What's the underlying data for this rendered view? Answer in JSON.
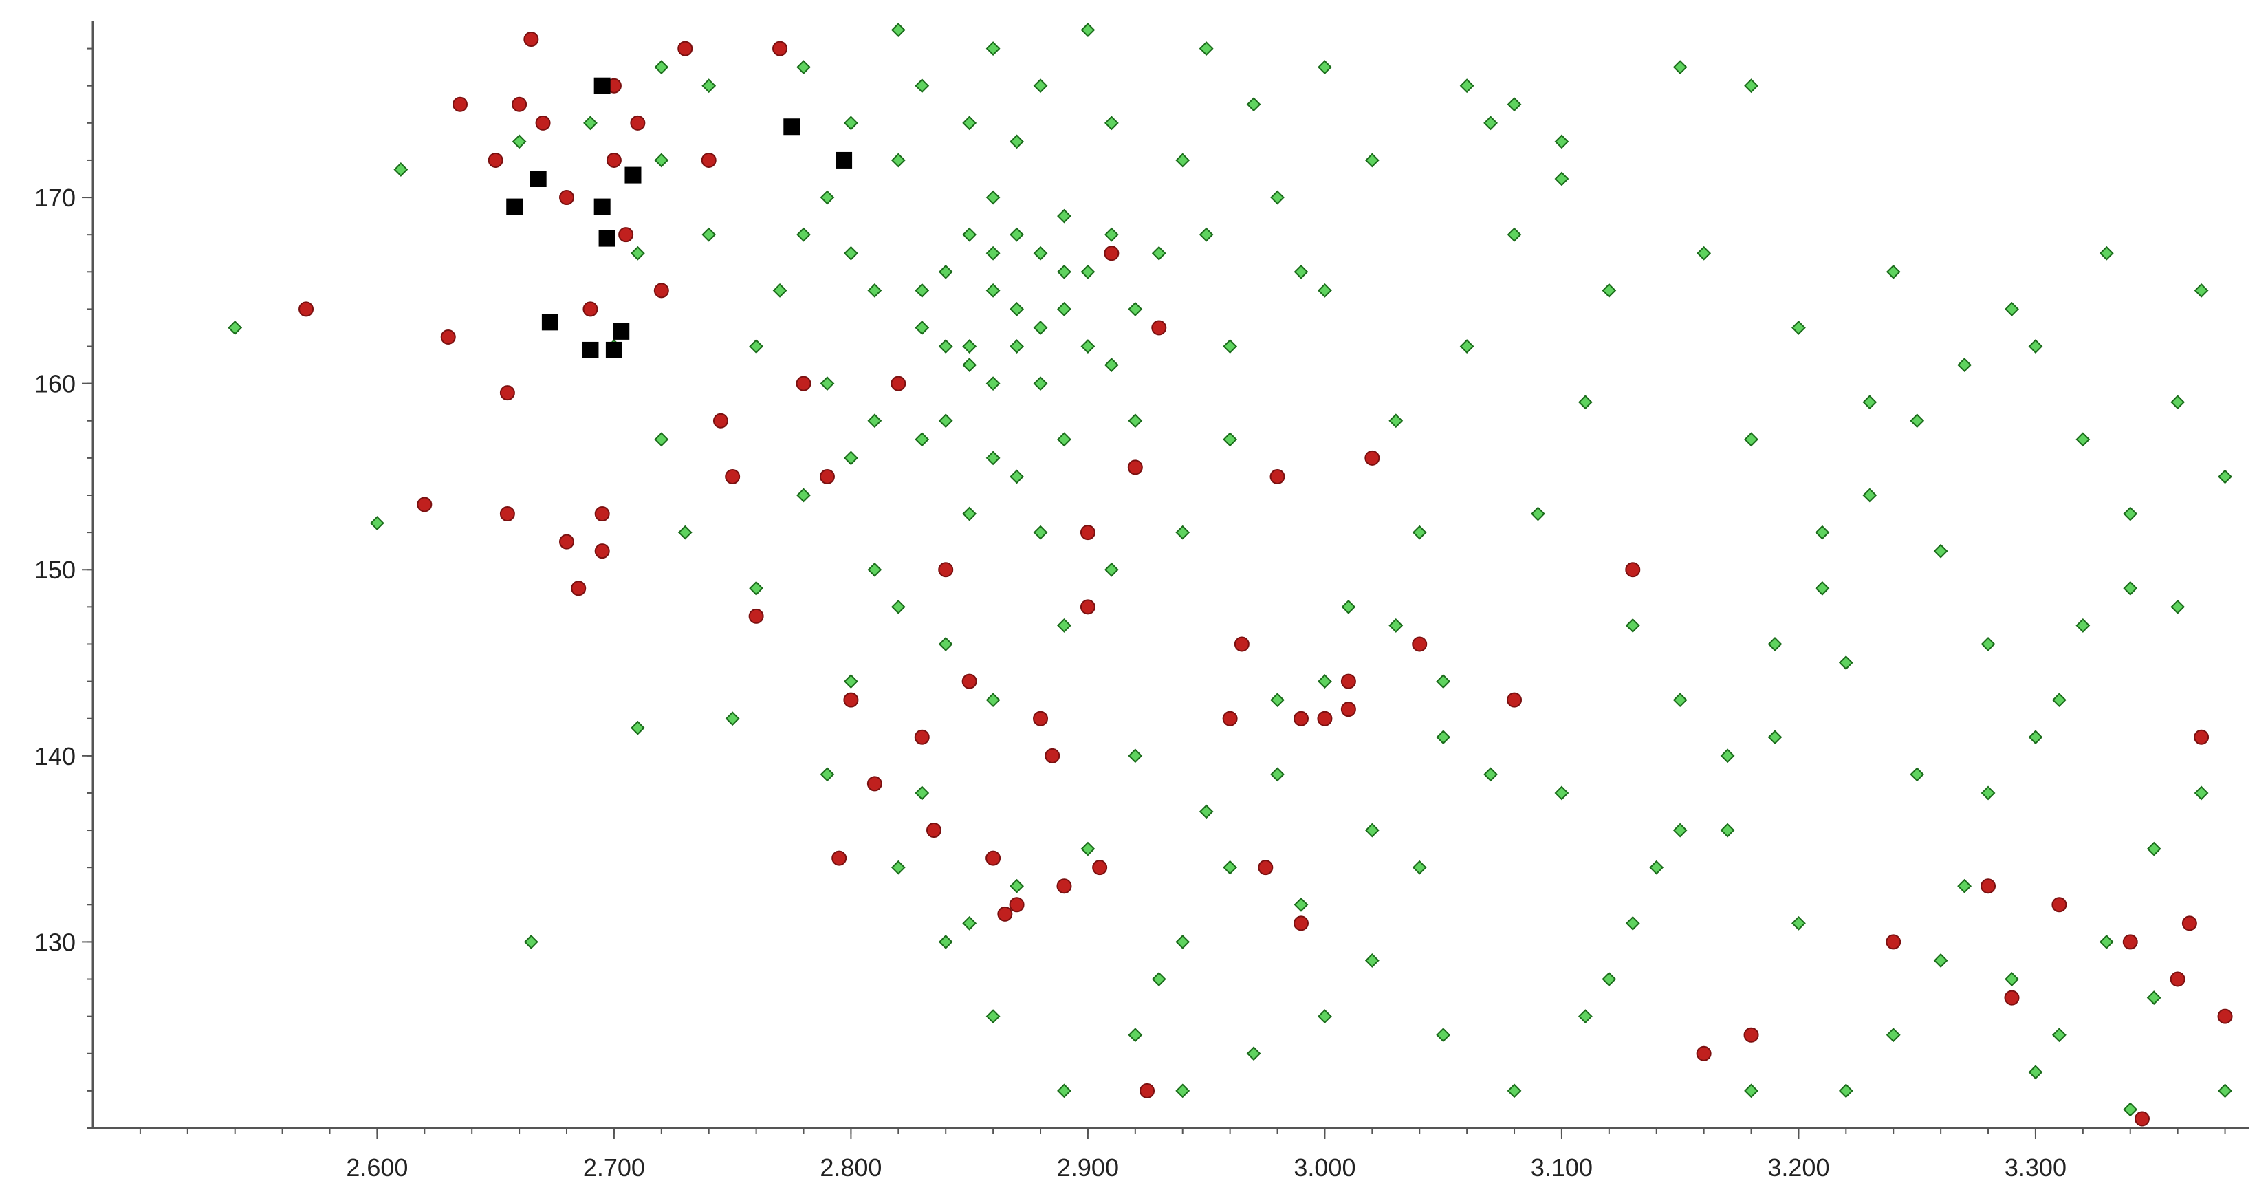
{
  "chart_data": {
    "type": "scatter",
    "title": "",
    "xlabel": "",
    "ylabel": "",
    "xlim": [
      2.48,
      3.39
    ],
    "ylim": [
      120,
      179.5
    ],
    "grid": false,
    "legend": "none",
    "x_ticks": [
      2.6,
      2.7,
      2.8,
      2.9,
      3.0,
      3.1,
      3.2,
      3.3
    ],
    "x_tick_labels": [
      "2.600",
      "2.700",
      "2.800",
      "2.900",
      "3.000",
      "3.100",
      "3.200",
      "3.300"
    ],
    "y_ticks": [
      130,
      140,
      150,
      160,
      170
    ],
    "y_tick_labels": [
      "130",
      "140",
      "150",
      "160",
      "170"
    ],
    "series": [
      {
        "marker": "diamond",
        "color": "#5fd35f",
        "edge_color": "#1a6b1a",
        "points": [
          [
            2.54,
            163
          ],
          [
            2.6,
            152.5
          ],
          [
            2.61,
            171.5
          ],
          [
            2.665,
            130
          ],
          [
            2.71,
            141.5
          ],
          [
            2.75,
            142
          ],
          [
            2.83,
            165
          ],
          [
            2.85,
            162
          ],
          [
            2.87,
            168
          ],
          [
            2.88,
            160
          ],
          [
            2.86,
            170
          ],
          [
            2.89,
            164
          ],
          [
            2.84,
            158
          ],
          [
            2.9,
            166
          ],
          [
            2.82,
            172
          ],
          [
            2.91,
            161
          ],
          [
            2.8,
            156
          ],
          [
            2.93,
            163
          ],
          [
            2.87,
            155
          ],
          [
            2.85,
            174
          ],
          [
            2.88,
            176
          ],
          [
            2.95,
            168
          ],
          [
            2.78,
            168
          ],
          [
            2.76,
            162
          ],
          [
            2.92,
            158
          ],
          [
            2.96,
            162
          ],
          [
            2.81,
            150
          ],
          [
            2.84,
            146
          ],
          [
            2.89,
            147
          ],
          [
            2.86,
            143
          ],
          [
            2.92,
            140
          ],
          [
            2.83,
            138
          ],
          [
            2.9,
            135
          ],
          [
            2.87,
            133
          ],
          [
            2.95,
            137
          ],
          [
            2.98,
            143
          ],
          [
            2.85,
            131
          ],
          [
            2.93,
            128
          ],
          [
            2.97,
            124
          ],
          [
            3.0,
            126
          ],
          [
            2.94,
            122
          ],
          [
            2.99,
            132
          ],
          [
            3.02,
            136
          ],
          [
            3.05,
            141
          ],
          [
            3.01,
            148
          ],
          [
            3.04,
            152
          ],
          [
            3.03,
            158
          ],
          [
            3.06,
            162
          ],
          [
            3.0,
            165
          ],
          [
            2.98,
            170
          ],
          [
            3.02,
            172
          ],
          [
            3.08,
            168
          ],
          [
            3.1,
            171
          ],
          [
            3.07,
            174
          ],
          [
            3.12,
            165
          ],
          [
            3.11,
            159
          ],
          [
            3.09,
            153
          ],
          [
            3.13,
            147
          ],
          [
            3.15,
            143
          ],
          [
            3.1,
            138
          ],
          [
            3.14,
            134
          ],
          [
            3.12,
            128
          ],
          [
            3.16,
            124
          ],
          [
            3.18,
            122
          ],
          [
            3.2,
            131
          ],
          [
            3.17,
            136
          ],
          [
            3.19,
            141
          ],
          [
            3.22,
            145
          ],
          [
            3.21,
            152
          ],
          [
            3.18,
            157
          ],
          [
            3.2,
            163
          ],
          [
            3.16,
            167
          ],
          [
            3.24,
            166
          ],
          [
            3.23,
            159
          ],
          [
            3.26,
            151
          ],
          [
            3.28,
            146
          ],
          [
            3.25,
            139
          ],
          [
            3.27,
            133
          ],
          [
            3.29,
            128
          ],
          [
            3.31,
            125
          ],
          [
            3.33,
            130
          ],
          [
            3.35,
            135
          ],
          [
            3.3,
            141
          ],
          [
            3.32,
            147
          ],
          [
            3.34,
            153
          ],
          [
            3.36,
            159
          ],
          [
            3.29,
            164
          ],
          [
            3.33,
            167
          ],
          [
            3.37,
            165
          ],
          [
            3.38,
            155
          ],
          [
            3.36,
            148
          ],
          [
            3.37,
            138
          ],
          [
            3.35,
            127
          ],
          [
            3.38,
            122
          ],
          [
            3.34,
            121
          ],
          [
            3.3,
            123
          ],
          [
            3.15,
            177
          ],
          [
            3.18,
            176
          ],
          [
            3.1,
            173
          ],
          [
            3.08,
            175
          ],
          [
            3.06,
            176
          ],
          [
            3.0,
            177
          ],
          [
            2.95,
            178
          ],
          [
            2.9,
            179
          ],
          [
            2.86,
            178
          ],
          [
            2.82,
            179
          ],
          [
            2.78,
            177
          ],
          [
            2.74,
            176
          ],
          [
            2.72,
            172
          ],
          [
            2.74,
            168
          ],
          [
            2.77,
            165
          ],
          [
            2.79,
            160
          ],
          [
            2.78,
            154
          ],
          [
            2.76,
            149
          ],
          [
            2.73,
            152
          ],
          [
            2.72,
            157
          ],
          [
            2.7,
            162
          ],
          [
            2.71,
            167
          ],
          [
            2.69,
            174
          ],
          [
            2.72,
            177
          ],
          [
            2.68,
            170
          ],
          [
            2.66,
            173
          ],
          [
            2.8,
            174
          ],
          [
            2.83,
            176
          ],
          [
            2.87,
            173
          ],
          [
            2.91,
            174
          ],
          [
            2.94,
            172
          ],
          [
            2.97,
            175
          ],
          [
            2.99,
            166
          ],
          [
            2.96,
            157
          ],
          [
            2.94,
            152
          ],
          [
            2.91,
            150
          ],
          [
            2.88,
            152
          ],
          [
            2.85,
            153
          ],
          [
            2.82,
            148
          ],
          [
            2.8,
            144
          ],
          [
            2.79,
            139
          ],
          [
            2.82,
            134
          ],
          [
            2.84,
            130
          ],
          [
            2.86,
            126
          ],
          [
            2.89,
            122
          ],
          [
            2.92,
            125
          ],
          [
            2.94,
            130
          ],
          [
            2.96,
            134
          ],
          [
            2.98,
            139
          ],
          [
            3.0,
            144
          ],
          [
            3.03,
            147
          ],
          [
            3.05,
            144
          ],
          [
            3.07,
            139
          ],
          [
            3.04,
            134
          ],
          [
            3.02,
            129
          ],
          [
            3.05,
            125
          ],
          [
            3.08,
            122
          ],
          [
            3.11,
            126
          ],
          [
            3.13,
            131
          ],
          [
            3.15,
            136
          ],
          [
            3.17,
            140
          ],
          [
            3.19,
            146
          ],
          [
            3.21,
            149
          ],
          [
            3.23,
            154
          ],
          [
            3.25,
            158
          ],
          [
            3.27,
            161
          ],
          [
            3.3,
            162
          ],
          [
            3.32,
            157
          ],
          [
            3.34,
            149
          ],
          [
            3.31,
            143
          ],
          [
            3.28,
            138
          ],
          [
            3.26,
            129
          ],
          [
            3.24,
            125
          ],
          [
            3.22,
            122
          ],
          [
            2.86,
            165
          ],
          [
            2.87,
            162
          ],
          [
            2.88,
            167
          ],
          [
            2.89,
            169
          ],
          [
            2.84,
            166
          ],
          [
            2.85,
            168
          ],
          [
            2.83,
            163
          ],
          [
            2.86,
            160
          ],
          [
            2.88,
            163
          ],
          [
            2.9,
            162
          ],
          [
            2.87,
            164
          ],
          [
            2.85,
            161
          ],
          [
            2.84,
            162
          ],
          [
            2.89,
            166
          ],
          [
            2.91,
            168
          ],
          [
            2.86,
            167
          ],
          [
            2.82,
            160
          ],
          [
            2.81,
            165
          ],
          [
            2.8,
            167
          ],
          [
            2.79,
            170
          ],
          [
            2.81,
            158
          ],
          [
            2.83,
            157
          ],
          [
            2.86,
            156
          ],
          [
            2.89,
            157
          ],
          [
            2.92,
            164
          ],
          [
            2.93,
            167
          ]
        ]
      },
      {
        "marker": "circle",
        "color": "#c0201e",
        "edge_color": "#7a1010",
        "points": [
          [
            2.57,
            164
          ],
          [
            2.62,
            153.5
          ],
          [
            2.63,
            162.5
          ],
          [
            2.635,
            175
          ],
          [
            2.65,
            172
          ],
          [
            2.655,
            153
          ],
          [
            2.655,
            159.5
          ],
          [
            2.66,
            175
          ],
          [
            2.665,
            178.5
          ],
          [
            2.67,
            174
          ],
          [
            2.68,
            170
          ],
          [
            2.68,
            151.5
          ],
          [
            2.685,
            149
          ],
          [
            2.69,
            164
          ],
          [
            2.695,
            151
          ],
          [
            2.695,
            153
          ],
          [
            2.7,
            176
          ],
          [
            2.7,
            172
          ],
          [
            2.705,
            168
          ],
          [
            2.71,
            174
          ],
          [
            2.72,
            165
          ],
          [
            2.73,
            178
          ],
          [
            2.74,
            172
          ],
          [
            2.745,
            158
          ],
          [
            2.75,
            155
          ],
          [
            2.76,
            147.5
          ],
          [
            2.77,
            178
          ],
          [
            2.78,
            160
          ],
          [
            2.79,
            155
          ],
          [
            2.795,
            134.5
          ],
          [
            2.8,
            143
          ],
          [
            2.81,
            138.5
          ],
          [
            2.82,
            160
          ],
          [
            2.83,
            141
          ],
          [
            2.835,
            136
          ],
          [
            2.84,
            150
          ],
          [
            2.85,
            144
          ],
          [
            2.86,
            134.5
          ],
          [
            2.865,
            131.5
          ],
          [
            2.87,
            132
          ],
          [
            2.88,
            142
          ],
          [
            2.885,
            140
          ],
          [
            2.89,
            133
          ],
          [
            2.9,
            148
          ],
          [
            2.9,
            152
          ],
          [
            2.905,
            134
          ],
          [
            2.91,
            167
          ],
          [
            2.92,
            155.5
          ],
          [
            2.925,
            122
          ],
          [
            2.93,
            163
          ],
          [
            2.96,
            142
          ],
          [
            2.965,
            146
          ],
          [
            2.975,
            134
          ],
          [
            2.98,
            155
          ],
          [
            2.99,
            131
          ],
          [
            2.99,
            142
          ],
          [
            3.0,
            142
          ],
          [
            3.01,
            144
          ],
          [
            3.01,
            142.5
          ],
          [
            3.02,
            156
          ],
          [
            3.04,
            146
          ],
          [
            3.08,
            143
          ],
          [
            3.13,
            150
          ],
          [
            3.16,
            124
          ],
          [
            3.18,
            125
          ],
          [
            3.24,
            130
          ],
          [
            3.28,
            133
          ],
          [
            3.29,
            127
          ],
          [
            3.31,
            132
          ],
          [
            3.34,
            130
          ],
          [
            3.345,
            120.5
          ],
          [
            3.36,
            128
          ],
          [
            3.365,
            131
          ],
          [
            3.37,
            141
          ],
          [
            3.38,
            126
          ]
        ]
      },
      {
        "marker": "square",
        "color": "#000000",
        "edge_color": "#000000",
        "points": [
          [
            2.658,
            169.5
          ],
          [
            2.668,
            171
          ],
          [
            2.673,
            163.3
          ],
          [
            2.69,
            161.8
          ],
          [
            2.695,
            176
          ],
          [
            2.695,
            169.5
          ],
          [
            2.697,
            167.8
          ],
          [
            2.7,
            161.8
          ],
          [
            2.703,
            162.8
          ],
          [
            2.708,
            171.2
          ],
          [
            2.775,
            173.8
          ],
          [
            2.797,
            172
          ]
        ]
      }
    ]
  }
}
